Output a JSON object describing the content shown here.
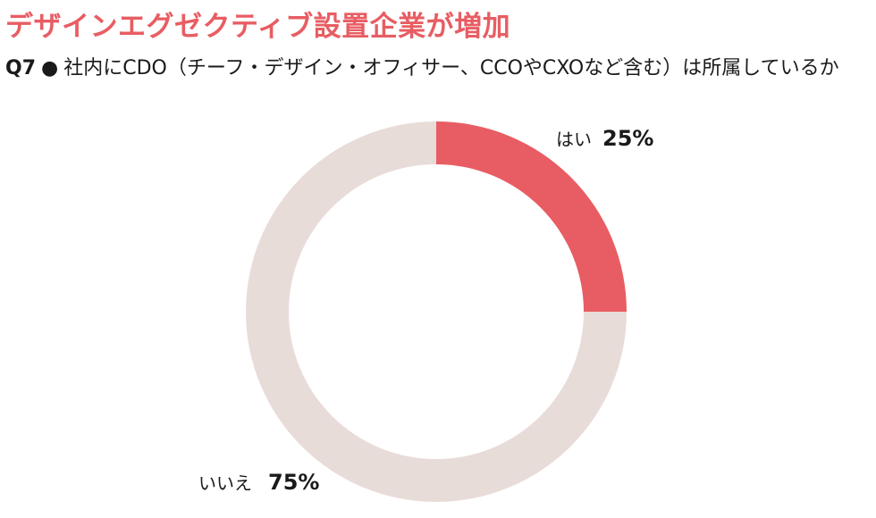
{
  "headline": "デザインエグゼクティブ設置企業が増加",
  "question": {
    "number": "Q7",
    "bullet": "●",
    "text": "社内にCDO（チーフ・デザイン・オフィサー、CCOやCXOなど含む）は所属しているか"
  },
  "chart_data": {
    "type": "pie",
    "variant": "donut",
    "slices": [
      {
        "label": "はい",
        "value": 25,
        "display": "25%",
        "color": "#e85d63"
      },
      {
        "label": "いいえ",
        "value": 75,
        "display": "75%",
        "color": "#e8dcd9"
      }
    ],
    "start_angle": "top",
    "direction": "clockwise"
  }
}
